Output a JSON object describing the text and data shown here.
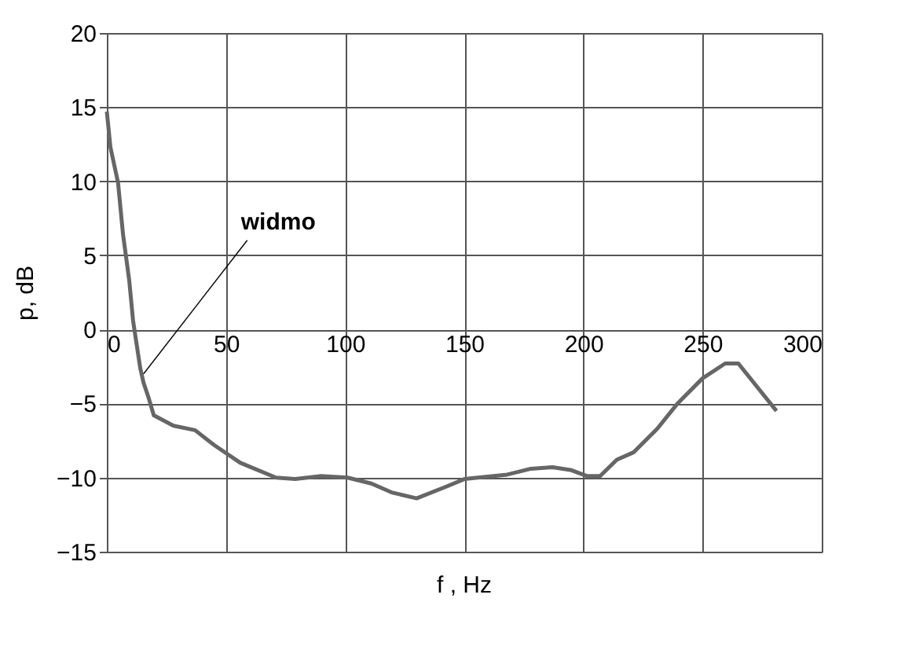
{
  "chart_data": {
    "type": "line",
    "xlabel": "f , Hz",
    "ylabel": "p, dB",
    "x": [
      0,
      1.5,
      4.7,
      6.8,
      9.4,
      11,
      14,
      15.4,
      17.5,
      19.7,
      28,
      37,
      45,
      56,
      71,
      79,
      90,
      101,
      111,
      119.5,
      130,
      142.6,
      150,
      168,
      178,
      187,
      195,
      201.6,
      207,
      214,
      221,
      231,
      239.5,
      250,
      259.5,
      265,
      281
    ],
    "series": [
      {
        "color": "#666666",
        "values": [
          14.7,
          12.3,
          9.9,
          6.4,
          3.3,
          0.6,
          -2.6,
          -3.6,
          -4.6,
          -5.8,
          -6.5,
          -6.8,
          -7.8,
          -9.0,
          -10.0,
          -10.1,
          -9.9,
          -10.0,
          -10.4,
          -11.0,
          -11.4,
          -10.6,
          -10.1,
          -9.8,
          -9.4,
          -9.3,
          -9.5,
          -9.9,
          -9.9,
          -8.8,
          -8.3,
          -6.7,
          -5.0,
          -3.3,
          -2.3,
          -2.3,
          -5.5
        ]
      }
    ],
    "xlim": [
      0,
      300
    ],
    "xticks": [
      0,
      50,
      100,
      150,
      200,
      250,
      300
    ],
    "ylim": [
      -15,
      20
    ],
    "yticks": [
      -15,
      -10,
      -5,
      0,
      5,
      10,
      15,
      20
    ],
    "grid": true,
    "marker": "none",
    "line_style": "solid",
    "annotations": [
      {
        "text": "widmo",
        "x": 15.4,
        "y": -3
      }
    ]
  }
}
